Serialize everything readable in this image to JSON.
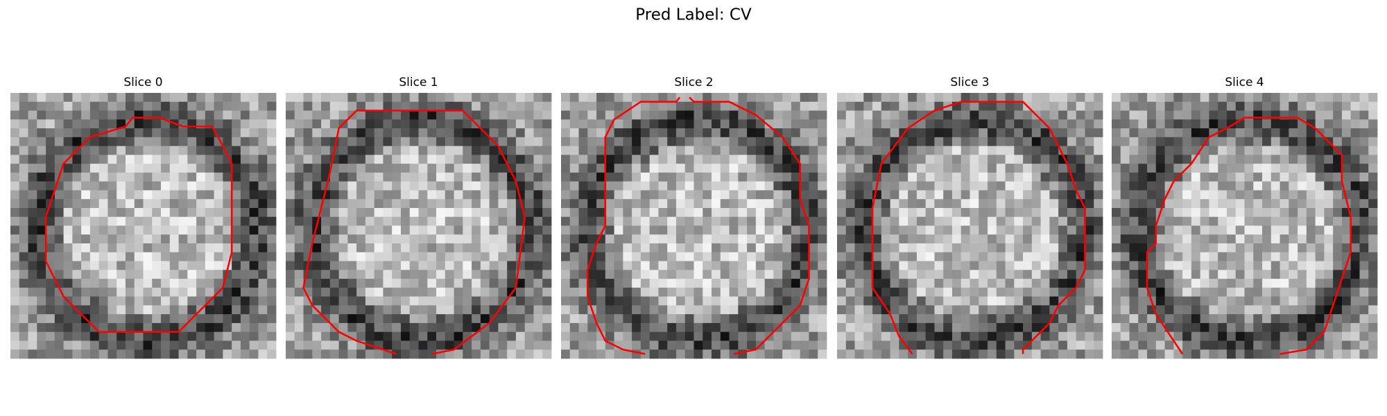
{
  "title": "Pred Label: CV",
  "panels": [
    {
      "title": "Slice 0"
    },
    {
      "title": "Slice 1"
    },
    {
      "title": "Slice 2"
    },
    {
      "title": "Slice 3"
    },
    {
      "title": "Slice 4"
    }
  ]
}
